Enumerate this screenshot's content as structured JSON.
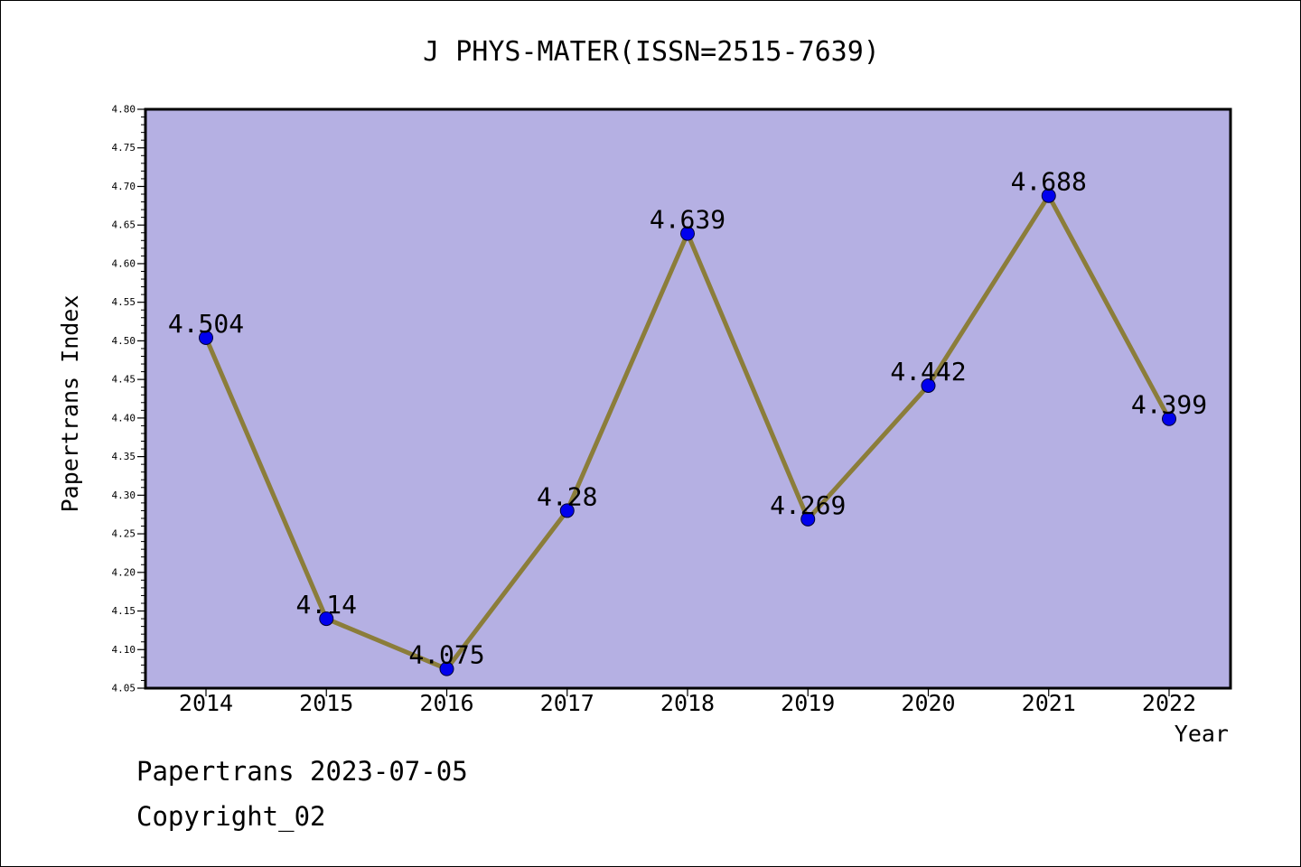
{
  "footer": {
    "line1": "Papertrans 2023-07-05",
    "line2": "Copyright_02"
  },
  "chart_data": {
    "type": "line",
    "title": "J PHYS-MATER(ISSN=2515-7639)",
    "xlabel": "Year",
    "ylabel": "Papertrans Index",
    "categories": [
      "2014",
      "2015",
      "2016",
      "2017",
      "2018",
      "2019",
      "2020",
      "2021",
      "2022"
    ],
    "values": [
      4.504,
      4.14,
      4.075,
      4.28,
      4.639,
      4.269,
      4.442,
      4.688,
      4.399
    ],
    "data_labels": [
      "4.504",
      "4.14",
      "4.075",
      "4.28",
      "4.639",
      "4.269",
      "4.442",
      "4.688",
      "4.399"
    ],
    "ylim": [
      4.05,
      4.8
    ],
    "yticks": [
      "4.05",
      "4.10",
      "4.15",
      "4.20",
      "4.25",
      "4.30",
      "4.35",
      "4.40",
      "4.45",
      "4.50",
      "4.55",
      "4.60",
      "4.65",
      "4.70",
      "4.75",
      "4.80"
    ],
    "grid": false,
    "legend": "none",
    "colors": {
      "plot_background": "#b5b0e3",
      "line": "#8b7d3a",
      "marker": "#0000ee",
      "marker_edge": "#000033"
    }
  }
}
